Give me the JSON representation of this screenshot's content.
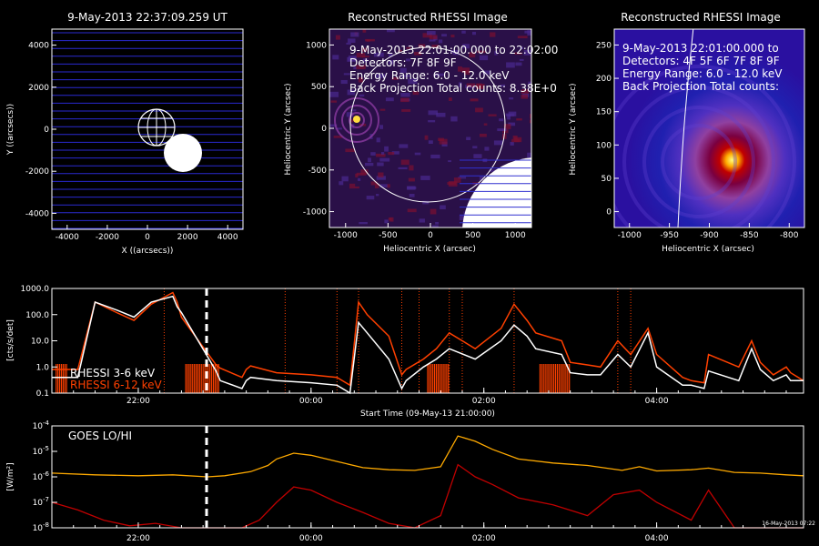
{
  "panels": {
    "sun": {
      "title": "9-May-2013 22:37:09.259 UT",
      "xlabel": "X ((arcsecs))",
      "ylabel": "Y ((arcsecs))",
      "xticks": [
        "-4000",
        "-2000",
        "0",
        "2000",
        "4000"
      ],
      "yticks": [
        "4000",
        "2000",
        "0",
        "-2000",
        "-4000"
      ]
    },
    "rhessi1": {
      "title": "Reconstructed RHESSI Image",
      "overlay": [
        "9-May-2013 22:01:00.000 to 22:02:00",
        "Detectors: 7F 8F 9F",
        "Energy Range: 6.0 - 12.0 keV",
        "Back Projection     Total counts: 8.38E+0"
      ],
      "xlabel": "Heliocentric X (arcsec)",
      "ylabel": "Heliocentric Y (arcsec)",
      "xticks": [
        "-1000",
        "-500",
        "0",
        "500",
        "1000"
      ],
      "yticks": [
        "1000",
        "500",
        "0",
        "-500",
        "-1000"
      ]
    },
    "rhessi2": {
      "title": "Reconstructed RHESSI Image",
      "overlay": [
        "9-May-2013 22:01:00.000 to",
        "Detectors: 4F 5F 6F 7F 8F 9F",
        "Energy Range: 6.0 - 12.0 keV",
        "Back Projection     Total counts:"
      ],
      "xlabel": "Heliocentric X (arcsec)",
      "ylabel": "Heliocentric Y (arcsec)",
      "xticks": [
        "-1000",
        "-950",
        "-900",
        "-850",
        "-800"
      ],
      "yticks": [
        "250",
        "200",
        "150",
        "100",
        "50",
        "0"
      ]
    }
  },
  "chart_data": [
    {
      "type": "line",
      "ylabel": "[cts/s/det]",
      "xlabel": "Start Time (09-May-13 21:00:00)",
      "xticks": [
        "22:00",
        "00:00",
        "02:00",
        "04:00"
      ],
      "yticks": [
        "1000.0",
        "100.0",
        "10.0",
        "1.0",
        "0.1"
      ],
      "ylim": [
        0.1,
        1000
      ],
      "scale": "log",
      "series": [
        {
          "name": "RHESSI  3-6 keV",
          "color": "#ffffff",
          "x": [
            0.0,
            0.3,
            0.5,
            0.75,
            0.95,
            1.15,
            1.4,
            1.45,
            1.5,
            1.9,
            1.95,
            2.2,
            2.25,
            2.3,
            2.6,
            3.0,
            3.3,
            3.45,
            3.55,
            3.65,
            3.9,
            4.05,
            4.1,
            4.3,
            4.45,
            4.6,
            4.9,
            5.2,
            5.35,
            5.5,
            5.6,
            5.9,
            6.0,
            6.2,
            6.35,
            6.55,
            6.7,
            6.9,
            7.0,
            7.3,
            7.4,
            7.55,
            7.6,
            7.95,
            8.1,
            8.2,
            8.35,
            8.5,
            8.55,
            8.7
          ],
          "y": [
            0.4,
            0.4,
            300,
            150,
            80,
            300,
            500,
            200,
            120,
            0.7,
            0.3,
            0.15,
            0.3,
            0.4,
            0.3,
            0.25,
            0.2,
            0.1,
            50,
            20,
            2,
            0.15,
            0.3,
            1.0,
            2,
            5,
            2,
            10,
            40,
            15,
            5,
            3,
            0.6,
            0.5,
            0.5,
            3,
            1,
            20,
            1,
            0.2,
            0.2,
            0.15,
            0.7,
            0.3,
            5,
            0.8,
            0.3,
            0.5,
            0.3,
            0.3
          ]
        },
        {
          "name": "RHESSI  6-12 keV",
          "color": "#ff4000",
          "x": [
            0.0,
            0.3,
            0.5,
            0.75,
            0.95,
            1.15,
            1.4,
            1.45,
            1.5,
            1.9,
            1.95,
            2.2,
            2.25,
            2.3,
            2.6,
            3.0,
            3.3,
            3.45,
            3.55,
            3.65,
            3.9,
            4.05,
            4.1,
            4.3,
            4.45,
            4.6,
            4.9,
            5.2,
            5.35,
            5.5,
            5.6,
            5.9,
            6.0,
            6.2,
            6.35,
            6.55,
            6.7,
            6.9,
            7.0,
            7.3,
            7.4,
            7.55,
            7.6,
            7.95,
            8.1,
            8.2,
            8.35,
            8.5,
            8.55,
            8.7
          ],
          "y": [
            0.8,
            0.8,
            300,
            120,
            60,
            250,
            700,
            300,
            80,
            1.2,
            0.9,
            0.4,
            0.8,
            1.1,
            0.6,
            0.5,
            0.4,
            0.2,
            300,
            100,
            15,
            0.5,
            0.8,
            2,
            5,
            20,
            5,
            30,
            250,
            60,
            20,
            10,
            1.5,
            1.2,
            1.0,
            10,
            3,
            30,
            3,
            0.4,
            0.3,
            0.25,
            3,
            1,
            10,
            1.5,
            0.5,
            1.0,
            0.6,
            0.3
          ]
        }
      ]
    },
    {
      "type": "line",
      "ylabel": "[W/m²]",
      "xlabel": "Start Time (09-May-13 21:00:00)",
      "xticks": [
        "22:00",
        "00:00",
        "02:00",
        "04:00"
      ],
      "ylim": [
        1e-08,
        0.0001
      ],
      "scale": "log",
      "annotation": "GOES LO/HI",
      "footer": "16-May-2013 07:22",
      "series": [
        {
          "name": "GOES LO",
          "color": "#ffaa00",
          "x": [
            0,
            0.5,
            1.0,
            1.4,
            1.8,
            2.0,
            2.3,
            2.5,
            2.6,
            2.8,
            3.0,
            3.3,
            3.6,
            3.9,
            4.2,
            4.5,
            4.7,
            4.9,
            5.1,
            5.4,
            5.8,
            6.2,
            6.6,
            6.8,
            7.0,
            7.4,
            7.6,
            7.9,
            8.2,
            8.5,
            8.7
          ],
          "y": [
            1.4e-06,
            1.2e-06,
            1.1e-06,
            1.2e-06,
            1e-06,
            1.1e-06,
            1.6e-06,
            2.8e-06,
            5e-06,
            8.5e-06,
            7e-06,
            4e-06,
            2.3e-06,
            1.9e-06,
            1.8e-06,
            2.5e-06,
            4e-05,
            2.5e-05,
            1.2e-05,
            5e-06,
            3.5e-06,
            2.8e-06,
            1.8e-06,
            2.5e-06,
            1.7e-06,
            1.9e-06,
            2.2e-06,
            1.5e-06,
            1.4e-06,
            1.2e-06,
            1.1e-06
          ]
        },
        {
          "name": "GOES HI",
          "color": "#c00000",
          "x": [
            0,
            0.3,
            0.6,
            0.9,
            1.2,
            1.5,
            1.8,
            2.0,
            2.2,
            2.4,
            2.6,
            2.8,
            3.0,
            3.3,
            3.6,
            3.9,
            4.2,
            4.5,
            4.7,
            4.9,
            5.1,
            5.4,
            5.8,
            6.2,
            6.5,
            6.8,
            7.0,
            7.4,
            7.6,
            7.9,
            8.2,
            8.5,
            8.7
          ],
          "y": [
            1e-07,
            5e-08,
            2e-08,
            1.2e-08,
            1.5e-08,
            1e-08,
            1e-08,
            1e-08,
            1e-08,
            2e-08,
            1e-07,
            4e-07,
            3e-07,
            1e-07,
            4e-08,
            1.5e-08,
            1e-08,
            3e-08,
            3e-06,
            1e-06,
            5e-07,
            1.5e-07,
            8e-08,
            3e-08,
            2e-07,
            3e-07,
            1e-07,
            2e-08,
            3e-07,
            1e-08,
            1e-08,
            1e-08,
            1e-08
          ]
        }
      ]
    }
  ],
  "rhessi_legend": [
    "RHESSI  3-6 keV",
    "RHESSI  6-12 keV"
  ]
}
